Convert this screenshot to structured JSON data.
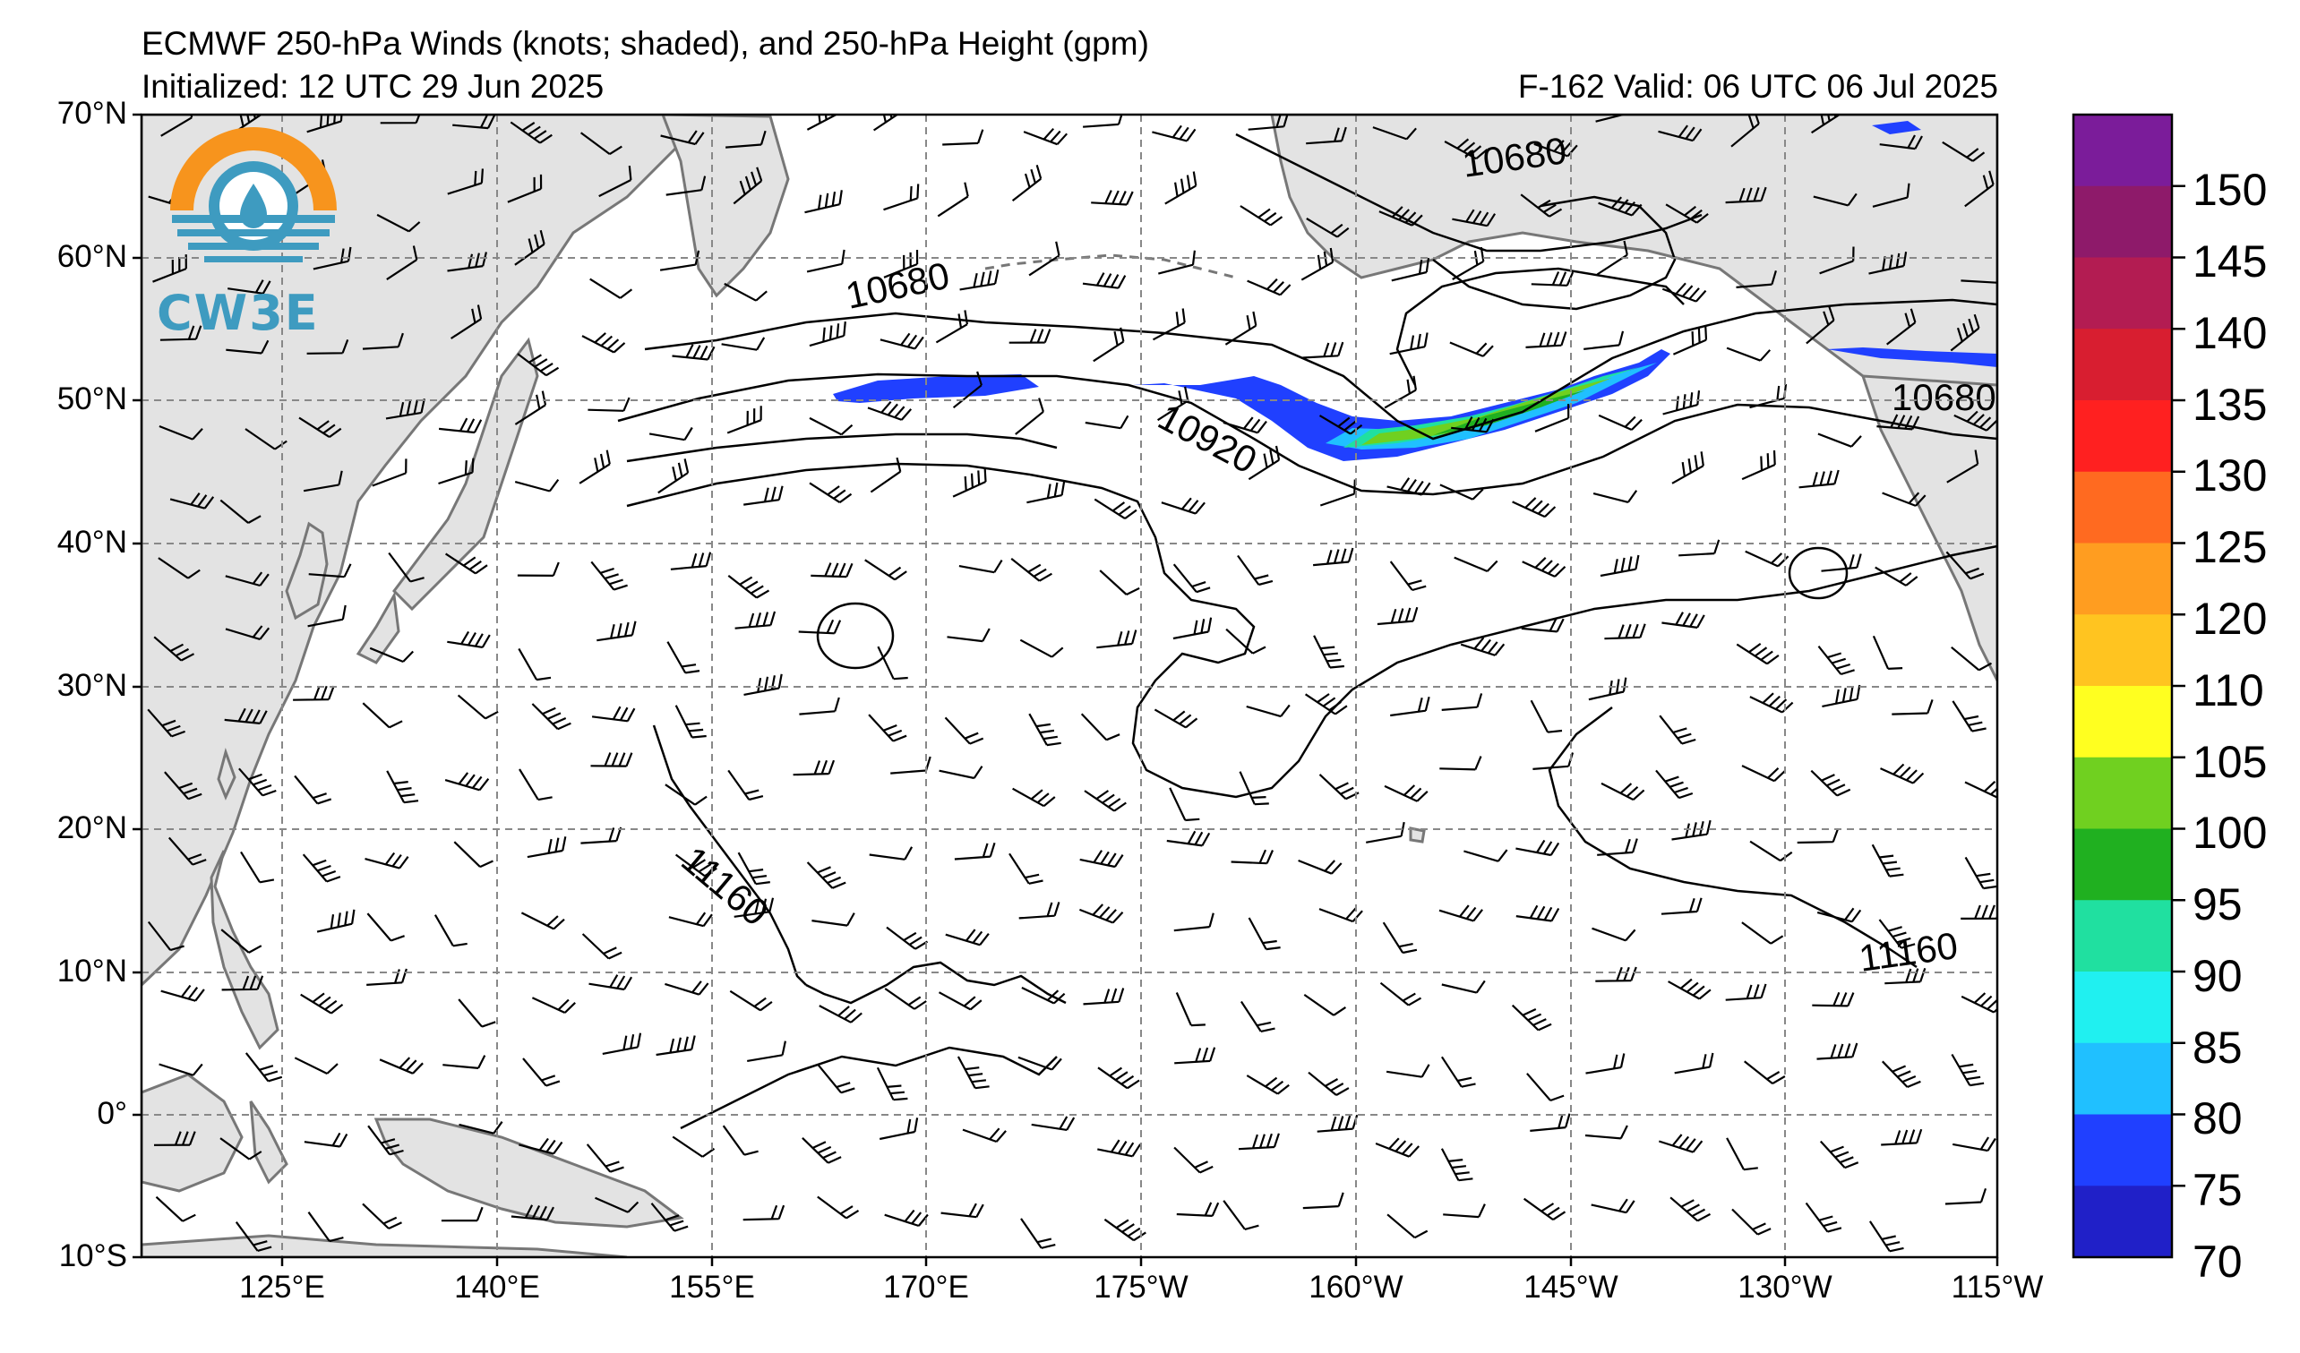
{
  "header": {
    "title": "ECMWF 250-hPa Winds (knots; shaded), and 250-hPa Height (gpm)",
    "initialized": "Initialized: 12 UTC 29 Jun 2025",
    "valid": "F-162  Valid: 06 UTC 06 Jul 2025"
  },
  "logo": {
    "text": "CW3E",
    "icon": "cw3e-logo-icon"
  },
  "map": {
    "lat_labels": [
      "70°N",
      "60°N",
      "50°N",
      "40°N",
      "30°N",
      "20°N",
      "10°N",
      "0°",
      "10°S"
    ],
    "lon_labels": [
      "125°E",
      "140°E",
      "155°E",
      "170°E",
      "175°W",
      "160°W",
      "145°W",
      "130°W",
      "115°W"
    ],
    "contour_labels": [
      "10680",
      "10680",
      "10920",
      "10680",
      "11160",
      "11160"
    ]
  },
  "colorbar": {
    "ticks": [
      "150",
      "145",
      "140",
      "135",
      "130",
      "125",
      "120",
      "110",
      "105",
      "100",
      "95",
      "90",
      "85",
      "80",
      "75",
      "70"
    ],
    "colors": [
      "#7b1c9a",
      "#8e1a6a",
      "#b31c52",
      "#d81e30",
      "#ff2020",
      "#ff6a20",
      "#ff9d20",
      "#ffc420",
      "#ffff20",
      "#70d020",
      "#20b020",
      "#20e0a0",
      "#20f0f0",
      "#20c0ff",
      "#2040ff",
      "#2020c8"
    ]
  }
}
